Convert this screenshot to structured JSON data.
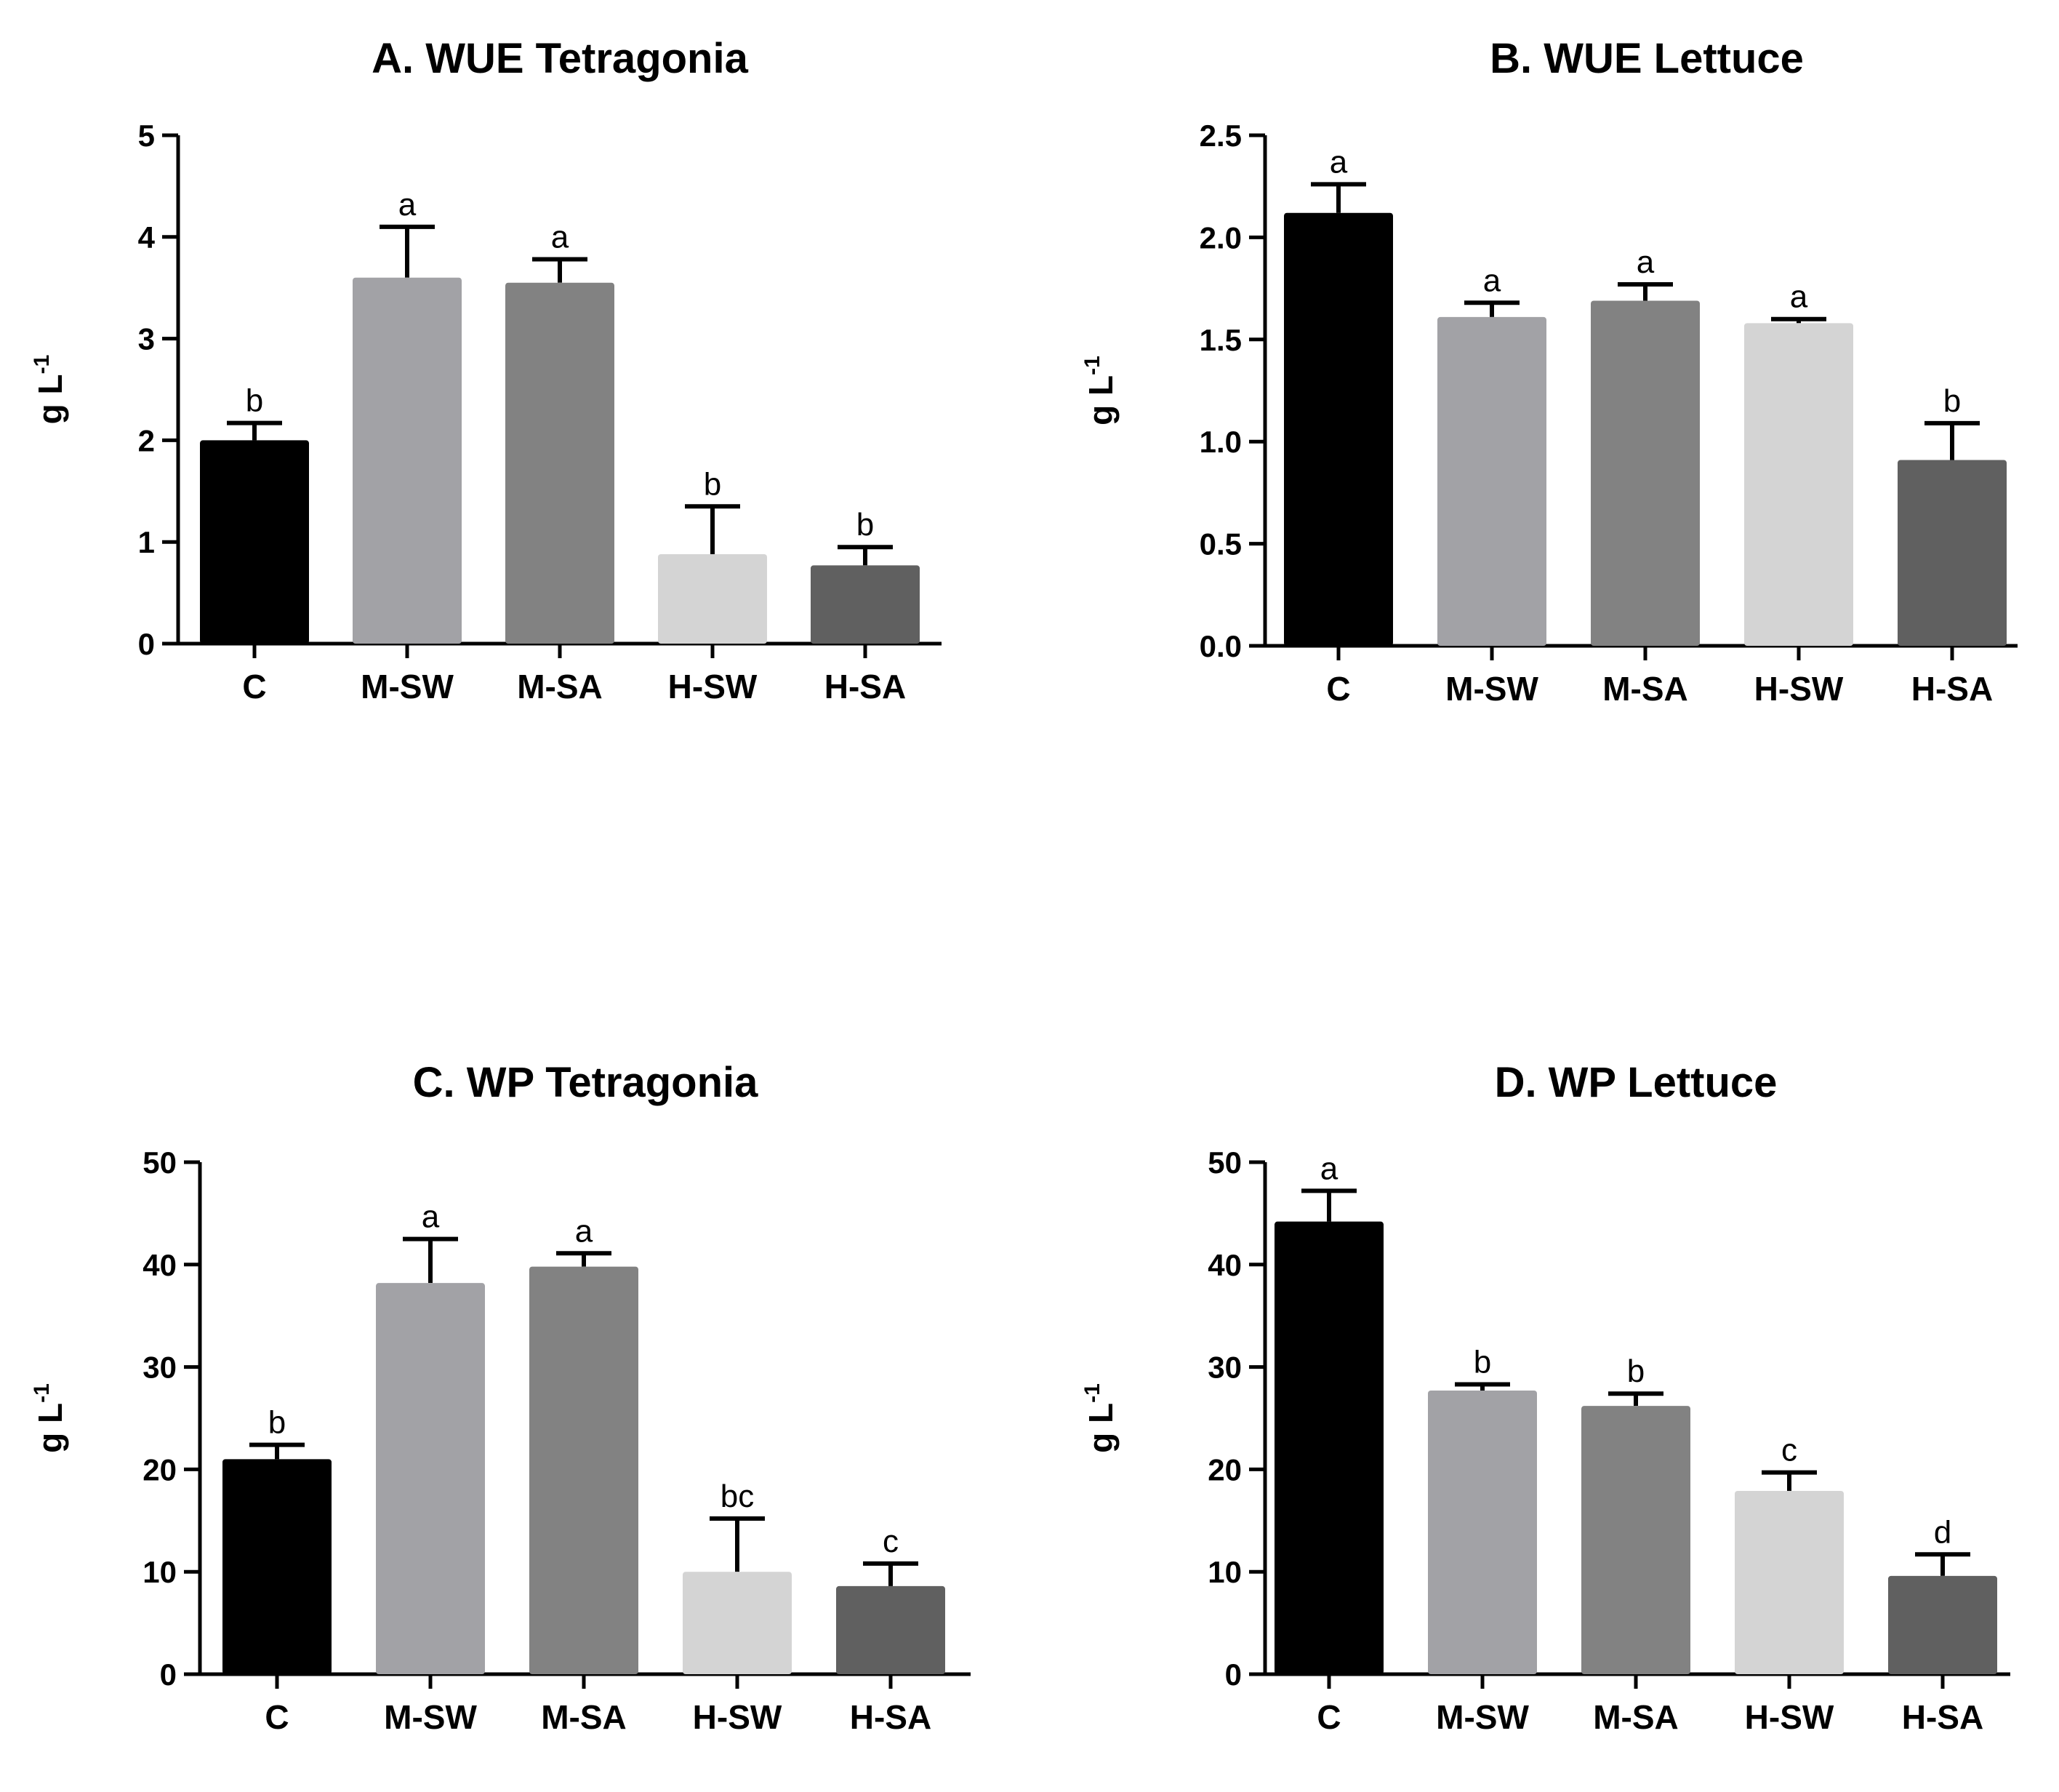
{
  "chart_data": [
    {
      "type": "bar",
      "title": "A. WUE Tetragonia",
      "ylabel": "g L",
      "ylabel_exponent": "-1",
      "xlabel": "",
      "categories": [
        "C",
        "M-SW",
        "M-SA",
        "H-SW",
        "H-SA"
      ],
      "values": [
        2.0,
        3.6,
        3.55,
        0.88,
        0.77
      ],
      "errors": [
        0.17,
        0.5,
        0.23,
        0.47,
        0.18
      ],
      "significance": [
        "b",
        "a",
        "a",
        "b",
        "b"
      ],
      "colors": [
        "#000000",
        "#a2a2a6",
        "#828282",
        "#d4d4d4",
        "#606060"
      ],
      "ylim": [
        0,
        5
      ],
      "yticks": [
        0,
        1,
        2,
        3,
        4,
        5
      ],
      "ytick_labels": [
        "0",
        "1",
        "2",
        "3",
        "4",
        "5"
      ]
    },
    {
      "type": "bar",
      "title": "B. WUE Lettuce",
      "ylabel": "g L",
      "ylabel_exponent": "-1",
      "xlabel": "",
      "categories": [
        "C",
        "M-SW",
        "M-SA",
        "H-SW",
        "H-SA"
      ],
      "values": [
        2.12,
        1.61,
        1.69,
        1.58,
        0.91
      ],
      "errors": [
        0.14,
        0.07,
        0.08,
        0.02,
        0.18
      ],
      "significance": [
        "a",
        "a",
        "a",
        "a",
        "b"
      ],
      "colors": [
        "#000000",
        "#a2a2a6",
        "#828282",
        "#d4d4d4",
        "#606060"
      ],
      "ylim": [
        0,
        2.5
      ],
      "yticks": [
        0,
        0.5,
        1,
        1.5,
        2,
        2.5
      ],
      "ytick_labels": [
        "0.0",
        "0.5",
        "1.0",
        "1.5",
        "2.0",
        "2.5"
      ]
    },
    {
      "type": "bar",
      "title": "C. WP Tetragonia",
      "ylabel": "g L",
      "ylabel_exponent": "-1",
      "xlabel": "",
      "categories": [
        "C",
        "M-SW",
        "M-SA",
        "H-SW",
        "H-SA"
      ],
      "values": [
        21.0,
        38.2,
        39.8,
        10.0,
        8.6
      ],
      "errors": [
        1.4,
        4.3,
        1.3,
        5.2,
        2.2
      ],
      "significance": [
        "b",
        "a",
        "a",
        "bc",
        "c"
      ],
      "colors": [
        "#000000",
        "#a2a2a6",
        "#828282",
        "#d4d4d4",
        "#606060"
      ],
      "ylim": [
        0,
        50
      ],
      "yticks": [
        0,
        10,
        20,
        30,
        40,
        50
      ],
      "ytick_labels": [
        "0",
        "10",
        "20",
        "30",
        "40",
        "50"
      ]
    },
    {
      "type": "bar",
      "title": "D. WP Lettuce",
      "ylabel": "g L",
      "ylabel_exponent": "-1",
      "xlabel": "",
      "categories": [
        "C",
        "M-SW",
        "M-SA",
        "H-SW",
        "H-SA"
      ],
      "values": [
        44.2,
        27.7,
        26.2,
        17.9,
        9.6
      ],
      "errors": [
        3.0,
        0.6,
        1.2,
        1.8,
        2.1
      ],
      "significance": [
        "a",
        "b",
        "b",
        "c",
        "d"
      ],
      "colors": [
        "#000000",
        "#a2a2a6",
        "#828282",
        "#d4d4d4",
        "#606060"
      ],
      "ylim": [
        0,
        50
      ],
      "yticks": [
        0,
        10,
        20,
        30,
        40,
        50
      ],
      "ytick_labels": [
        "0",
        "10",
        "20",
        "30",
        "40",
        "50"
      ]
    }
  ]
}
